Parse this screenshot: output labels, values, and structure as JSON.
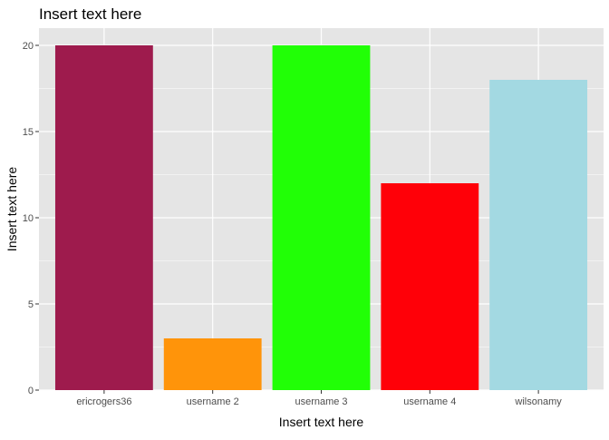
{
  "chart_data": {
    "type": "bar",
    "title": "Insert text here",
    "xlabel": "Insert text here",
    "ylabel": "Insert text here",
    "categories": [
      "ericrogers36",
      "username 2",
      "username 3",
      "username 4",
      "wilsonamy"
    ],
    "values": [
      20,
      3,
      20,
      12,
      18
    ],
    "colors": [
      "#9E1B4D",
      "#FF940A",
      "#21FF06",
      "#FF0008",
      "#A3D9E2"
    ],
    "ylim": [
      0,
      21
    ],
    "yticks": [
      0,
      5,
      10,
      15,
      20
    ],
    "ytick_labels": [
      "0",
      "5",
      "10",
      "15",
      "20"
    ],
    "grid": true,
    "panel_background": "#E5E5E5",
    "gridline_color": "#FFFFFF",
    "legend": "none"
  }
}
